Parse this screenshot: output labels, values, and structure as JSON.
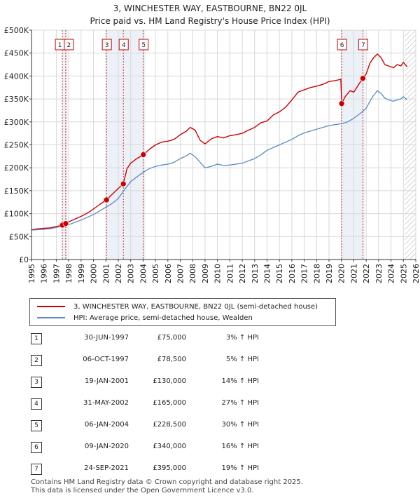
{
  "title_line1": "3, WINCHESTER WAY, EASTBOURNE, BN22 0JL",
  "title_line2": "Price paid vs. HM Land Registry's House Price Index (HPI)",
  "colors": {
    "property": "#cc0000",
    "hpi": "#5b8ac6",
    "marker": "#cc0000",
    "band": "#dce6f2",
    "hatch": "#b0b0b0"
  },
  "legend": {
    "property": "3, WINCHESTER WAY, EASTBOURNE, BN22 0JL (semi-detached house)",
    "hpi": "HPI: Average price, semi-detached house, Wealden"
  },
  "chart_data": {
    "type": "line",
    "xlim": [
      1995,
      2026
    ],
    "ylim": [
      0,
      500000
    ],
    "x_ticks": [
      "1995",
      "1996",
      "1997",
      "1998",
      "1999",
      "2000",
      "2001",
      "2002",
      "2003",
      "2004",
      "2005",
      "2006",
      "2007",
      "2008",
      "2009",
      "2010",
      "2011",
      "2012",
      "2013",
      "2014",
      "2015",
      "2016",
      "2017",
      "2018",
      "2019",
      "2020",
      "2021",
      "2022",
      "2023",
      "2024",
      "2025",
      "2026"
    ],
    "y_ticks": [
      {
        "value": 0,
        "label": "£0"
      },
      {
        "value": 50000,
        "label": "£50K"
      },
      {
        "value": 100000,
        "label": "£100K"
      },
      {
        "value": 150000,
        "label": "£150K"
      },
      {
        "value": 200000,
        "label": "£200K"
      },
      {
        "value": 250000,
        "label": "£250K"
      },
      {
        "value": 300000,
        "label": "£300K"
      },
      {
        "value": 350000,
        "label": "£350K"
      },
      {
        "value": 400000,
        "label": "£400K"
      },
      {
        "value": 450000,
        "label": "£450K"
      },
      {
        "value": 500000,
        "label": "£500K"
      }
    ],
    "forecast_from": 2025.1,
    "series": [
      {
        "name": "3, WINCHESTER WAY, EASTBOURNE, BN22 0JL (semi-detached house)",
        "x": [
          1995.0,
          1995.5,
          1996.0,
          1996.5,
          1997.0,
          1997.5,
          1997.76,
          1998.0,
          1998.5,
          1999.0,
          1999.5,
          2000.0,
          2000.5,
          2001.05,
          2001.5,
          2002.0,
          2002.41,
          2002.7,
          2003.0,
          2003.5,
          2004.02,
          2004.5,
          2005.0,
          2005.5,
          2006.0,
          2006.5,
          2007.0,
          2007.5,
          2007.8,
          2008.2,
          2008.6,
          2009.0,
          2009.5,
          2010.0,
          2010.5,
          2011.0,
          2011.5,
          2012.0,
          2012.5,
          2013.0,
          2013.5,
          2014.0,
          2014.5,
          2015.0,
          2015.5,
          2016.0,
          2016.5,
          2017.0,
          2017.5,
          2018.0,
          2018.5,
          2019.0,
          2019.5,
          2019.95,
          2020.02,
          2020.3,
          2020.7,
          2021.0,
          2021.4,
          2021.73,
          2022.0,
          2022.3,
          2022.6,
          2022.9,
          2023.2,
          2023.5,
          2023.8,
          2024.2,
          2024.5,
          2024.8,
          2025.0,
          2025.3
        ],
        "y": [
          65000,
          67000,
          68000,
          69000,
          72000,
          75000,
          78500,
          82000,
          88000,
          94000,
          101000,
          110000,
          120000,
          130000,
          142000,
          155000,
          165000,
          198000,
          210000,
          220000,
          228500,
          240000,
          250000,
          256000,
          258000,
          262000,
          272000,
          280000,
          288000,
          282000,
          260000,
          252000,
          263000,
          268000,
          265000,
          270000,
          272000,
          275000,
          282000,
          288000,
          298000,
          302000,
          315000,
          322000,
          332000,
          348000,
          365000,
          370000,
          375000,
          378000,
          382000,
          388000,
          390000,
          393000,
          340000,
          355000,
          368000,
          365000,
          382000,
          395000,
          405000,
          428000,
          440000,
          448000,
          440000,
          425000,
          422000,
          418000,
          425000,
          422000,
          430000,
          420000
        ]
      },
      {
        "name": "HPI: Average price, semi-detached house, Wealden",
        "x": [
          1995.0,
          1995.5,
          1996.0,
          1996.5,
          1997.0,
          1997.5,
          1998.0,
          1998.5,
          1999.0,
          1999.5,
          2000.0,
          2000.5,
          2001.0,
          2001.5,
          2002.0,
          2002.5,
          2003.0,
          2003.5,
          2004.0,
          2004.5,
          2005.0,
          2005.5,
          2006.0,
          2006.5,
          2007.0,
          2007.5,
          2007.8,
          2008.2,
          2008.6,
          2009.0,
          2009.5,
          2010.0,
          2010.5,
          2011.0,
          2011.5,
          2012.0,
          2012.5,
          2013.0,
          2013.5,
          2014.0,
          2014.5,
          2015.0,
          2015.5,
          2016.0,
          2016.5,
          2017.0,
          2017.5,
          2018.0,
          2018.5,
          2019.0,
          2019.5,
          2020.0,
          2020.5,
          2021.0,
          2021.5,
          2022.0,
          2022.3,
          2022.6,
          2022.9,
          2023.2,
          2023.5,
          2023.8,
          2024.2,
          2024.5,
          2024.8,
          2025.0,
          2025.3
        ],
        "y": [
          64000,
          65000,
          66000,
          67000,
          70000,
          73000,
          76000,
          81000,
          86000,
          92000,
          98000,
          106000,
          114000,
          122000,
          133000,
          152000,
          170000,
          180000,
          190000,
          198000,
          203000,
          206000,
          208000,
          212000,
          220000,
          226000,
          232000,
          224000,
          212000,
          200000,
          203000,
          208000,
          205000,
          206000,
          208000,
          210000,
          215000,
          220000,
          228000,
          238000,
          244000,
          250000,
          256000,
          262000,
          270000,
          276000,
          280000,
          284000,
          288000,
          292000,
          294000,
          296000,
          300000,
          308000,
          318000,
          330000,
          345000,
          358000,
          368000,
          362000,
          352000,
          348000,
          345000,
          348000,
          350000,
          355000,
          348000
        ]
      }
    ],
    "transactions": [
      {
        "id": "1",
        "x": 1997.49,
        "y": 75000,
        "date": "30-JUN-1997",
        "price": "£75,000",
        "hpi": "3% ↑ HPI"
      },
      {
        "id": "2",
        "x": 1997.76,
        "y": 78500,
        "date": "06-OCT-1997",
        "price": "£78,500",
        "hpi": "5% ↑ HPI"
      },
      {
        "id": "3",
        "x": 2001.05,
        "y": 130000,
        "date": "19-JAN-2001",
        "price": "£130,000",
        "hpi": "14% ↑ HPI"
      },
      {
        "id": "4",
        "x": 2002.41,
        "y": 165000,
        "date": "31-MAY-2002",
        "price": "£165,000",
        "hpi": "27% ↑ HPI"
      },
      {
        "id": "5",
        "x": 2004.02,
        "y": 228500,
        "date": "06-JAN-2004",
        "price": "£228,500",
        "hpi": "30% ↑ HPI"
      },
      {
        "id": "6",
        "x": 2020.02,
        "y": 340000,
        "date": "09-JAN-2020",
        "price": "£340,000",
        "hpi": "16% ↑ HPI"
      },
      {
        "id": "7",
        "x": 2021.73,
        "y": 395000,
        "date": "24-SEP-2021",
        "price": "£395,000",
        "hpi": "19% ↑ HPI"
      }
    ]
  },
  "footer": {
    "line1": "Contains HM Land Registry data © Crown copyright and database right 2025.",
    "line2": "This data is licensed under the Open Government Licence v3.0."
  }
}
